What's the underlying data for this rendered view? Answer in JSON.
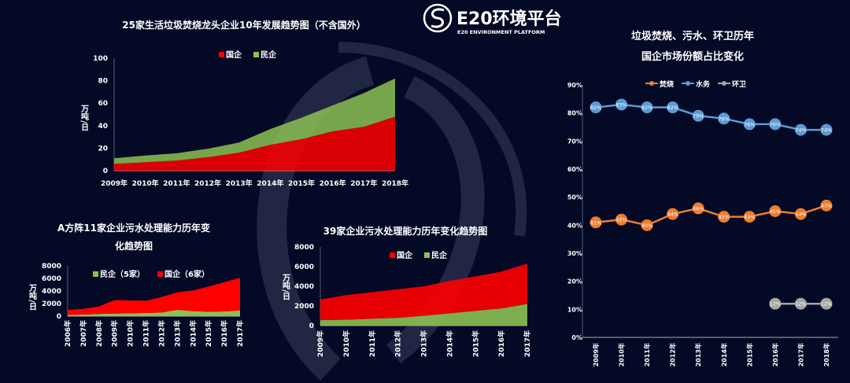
{
  "logo": {
    "name": "E20环境平台",
    "subtitle": "E20 ENVIRONMENT PLATFORM"
  },
  "colors": {
    "background": "#040925",
    "state": "#ff0000",
    "private": "#8cc152",
    "incineration": "#ed7d31",
    "water": "#5b9bd5",
    "sanitation": "#a5a5a5"
  },
  "chart_data": [
    {
      "type": "area",
      "stacked": true,
      "title": "25家生活垃圾焚烧龙头企业10年发展趋势图（不含国外）",
      "ylabel": "万吨/日",
      "ylim": [
        0,
        100
      ],
      "yticks": [
        "0",
        "20",
        "40",
        "60",
        "80",
        "100"
      ],
      "categories": [
        "2009年",
        "2010年",
        "2011年",
        "2012年",
        "2013年",
        "2014年",
        "2015年",
        "2016年",
        "2017年",
        "2018年"
      ],
      "legend": [
        "国企",
        "民企"
      ],
      "series": [
        {
          "name": "国企",
          "color": "#ff0000",
          "values": [
            6,
            7.5,
            9,
            12,
            16,
            23,
            28,
            35,
            39,
            48
          ]
        },
        {
          "name": "民企",
          "color": "#8cc152",
          "values": [
            5,
            6,
            6.5,
            7.5,
            9,
            14,
            19,
            23,
            30,
            34
          ]
        }
      ]
    },
    {
      "type": "area",
      "stacked": true,
      "title": "A方阵11家企业污水处理能力历年变化趋势图",
      "ylabel": "万吨/日",
      "ylim": [
        0,
        8000
      ],
      "yticks": [
        "0",
        "2000",
        "4000",
        "6000",
        "8000"
      ],
      "categories": [
        "2006年",
        "2007年",
        "2008年",
        "2009年",
        "2010年",
        "2011年",
        "2012年",
        "2013年",
        "2014年",
        "2015年",
        "2016年",
        "2017年"
      ],
      "legend": [
        "民企（5家）",
        "国企（6家）"
      ],
      "series": [
        {
          "name": "民企（5家）",
          "color": "#8cc152",
          "values": [
            200,
            250,
            350,
            400,
            450,
            500,
            600,
            1000,
            800,
            700,
            750,
            900
          ]
        },
        {
          "name": "国企（6家）",
          "color": "#ff0000",
          "values": [
            800,
            900,
            1200,
            2150,
            2050,
            1950,
            2450,
            2800,
            3300,
            4000,
            4650,
            5200
          ]
        }
      ]
    },
    {
      "type": "area",
      "stacked": true,
      "title": "39家企业污水处理能力历年变化趋势图",
      "ylabel": "万吨/日",
      "ylim": [
        0,
        8000
      ],
      "yticks": [
        "0",
        "2000",
        "4000",
        "6000",
        "8000"
      ],
      "categories": [
        "2009年",
        "2010年",
        "2011年",
        "2012年",
        "2013年",
        "2014年",
        "2015年",
        "2016年",
        "2017年"
      ],
      "legend": [
        "国企",
        "民企"
      ],
      "series": [
        {
          "name": "民企",
          "color": "#8cc152",
          "values": [
            550,
            600,
            700,
            800,
            1000,
            1250,
            1500,
            1750,
            2200
          ]
        },
        {
          "name": "国企",
          "color": "#ff0000",
          "values": [
            2100,
            2500,
            2700,
            2900,
            3000,
            3300,
            3500,
            3750,
            4100
          ]
        }
      ]
    },
    {
      "type": "line",
      "title": [
        "垃圾焚烧、污水、环卫历年",
        "国企市场份额占比变化"
      ],
      "ylim": [
        0,
        90
      ],
      "yticks": [
        "0%",
        "10%",
        "20%",
        "30%",
        "40%",
        "50%",
        "60%",
        "70%",
        "80%",
        "90%"
      ],
      "categories": [
        "2009年",
        "2010年",
        "2011年",
        "2012年",
        "2013年",
        "2014年",
        "2015年",
        "2016年",
        "2017年",
        "2018年"
      ],
      "legend": [
        "焚烧",
        "水务",
        "环卫"
      ],
      "series": [
        {
          "name": "焚烧",
          "color": "#ed7d31",
          "values": [
            41,
            42,
            40,
            44,
            46,
            43,
            43,
            45,
            44,
            47
          ],
          "labels": [
            "41%",
            "42%",
            "40%",
            "44%",
            "46%",
            "43%",
            "43%",
            "45%",
            "44%",
            "47%"
          ]
        },
        {
          "name": "水务",
          "color": "#5b9bd5",
          "values": [
            82,
            83,
            82,
            82,
            79,
            78,
            76,
            76,
            74,
            74
          ],
          "labels": [
            "82%",
            "83%",
            "82%",
            "82%",
            "79%",
            "78%",
            "76%",
            "76%",
            "74%",
            "74%"
          ]
        },
        {
          "name": "环卫",
          "color": "#a5a5a5",
          "values": [
            null,
            null,
            null,
            null,
            null,
            null,
            null,
            12,
            12,
            12
          ],
          "labels": [
            "",
            "",
            "",
            "",
            "",
            "",
            "",
            "12%",
            "12%",
            "12%"
          ]
        }
      ]
    }
  ]
}
